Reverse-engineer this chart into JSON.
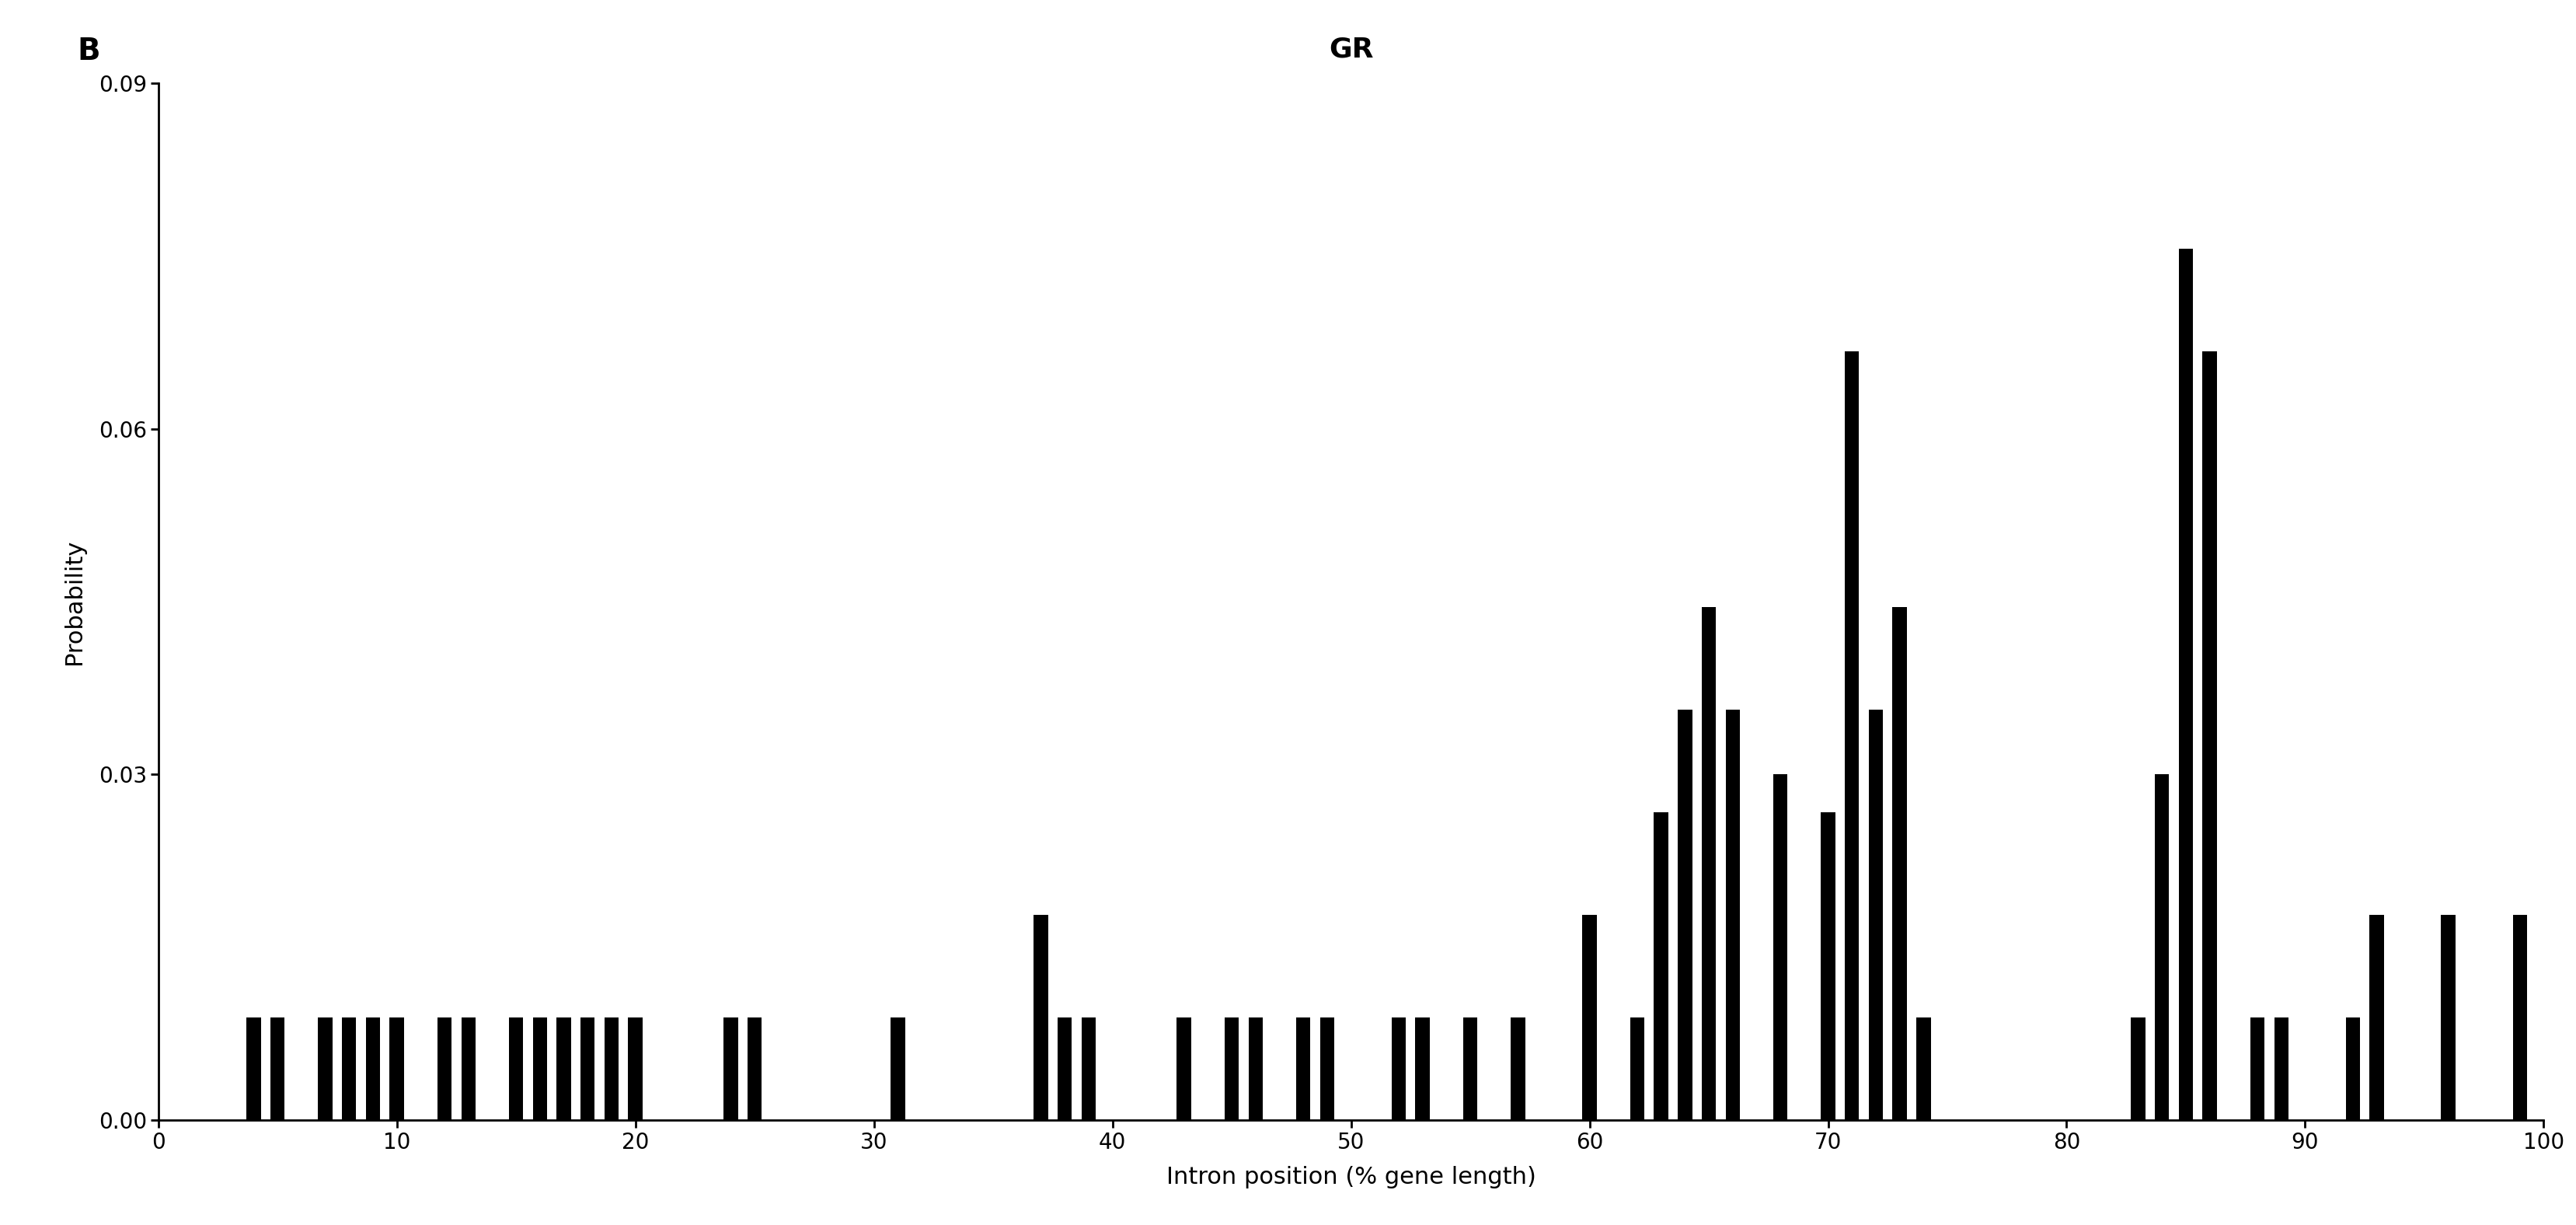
{
  "title": "GR",
  "xlabel": "Intron position (% gene length)",
  "ylabel": "Probability",
  "panel_label": "B",
  "xlim": [
    0,
    100
  ],
  "ylim": [
    0,
    0.09
  ],
  "yticks": [
    0.0,
    0.03,
    0.06,
    0.09
  ],
  "xticks": [
    0,
    10,
    20,
    30,
    40,
    50,
    60,
    70,
    80,
    90,
    100
  ],
  "bar_color": "#000000",
  "background_color": "#ffffff",
  "bar_positions": [
    4,
    5,
    7,
    8,
    9,
    10,
    12,
    13,
    15,
    16,
    17,
    18,
    19,
    20,
    24,
    25,
    31,
    37,
    38,
    39,
    43,
    45,
    46,
    48,
    49,
    52,
    53,
    55,
    57,
    60,
    62,
    63,
    64,
    65,
    66,
    68,
    70,
    71,
    72,
    73,
    74,
    83,
    84,
    85,
    86,
    88,
    89,
    92,
    93,
    96,
    99
  ],
  "bar_heights": [
    0.0089,
    0.0089,
    0.0089,
    0.0089,
    0.0089,
    0.0089,
    0.0089,
    0.0089,
    0.0089,
    0.0089,
    0.0089,
    0.0089,
    0.0089,
    0.0089,
    0.0089,
    0.0089,
    0.0089,
    0.0178,
    0.0089,
    0.0089,
    0.0089,
    0.0089,
    0.0089,
    0.0089,
    0.0089,
    0.0089,
    0.0089,
    0.0089,
    0.0089,
    0.0178,
    0.0089,
    0.0267,
    0.0356,
    0.0445,
    0.0356,
    0.03,
    0.0267,
    0.0667,
    0.0356,
    0.0445,
    0.0089,
    0.0089,
    0.03,
    0.0756,
    0.0667,
    0.0089,
    0.0089,
    0.0089,
    0.0178,
    0.0178,
    0.0178
  ],
  "bar_width": 0.6,
  "title_fontsize": 26,
  "label_fontsize": 22,
  "tick_fontsize": 20,
  "panel_label_fontsize": 28
}
